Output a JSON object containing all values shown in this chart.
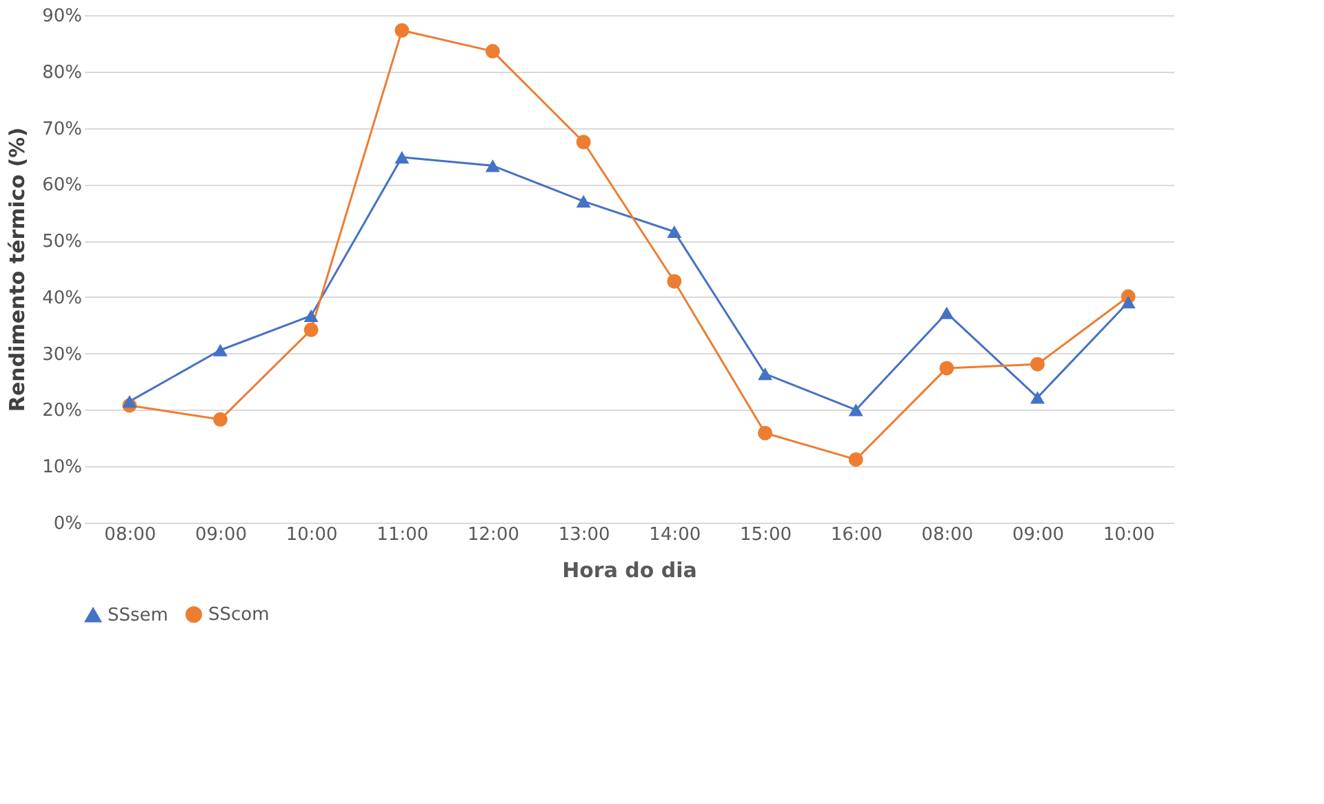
{
  "chart_data": {
    "type": "line",
    "xlabel": "Hora do dia",
    "ylabel": "Rendimento térmico (%)",
    "categories": [
      "08:00",
      "09:00",
      "10:00",
      "11:00",
      "12:00",
      "13:00",
      "14:00",
      "15:00",
      "16:00",
      "08:00",
      "09:00",
      "10:00"
    ],
    "series": [
      {
        "name": "SSsem",
        "color": "#4472c4",
        "marker": "triangle",
        "values": [
          21.5,
          30.6,
          36.7,
          64.8,
          63.3,
          57,
          51.6,
          26.4,
          20,
          37.2,
          22.2,
          39.1
        ]
      },
      {
        "name": "SScom",
        "color": "#ed7d31",
        "marker": "circle",
        "values": [
          20.8,
          18.3,
          34.2,
          87.3,
          83.6,
          67.5,
          42.8,
          15.9,
          11.2,
          27.4,
          28.1,
          40.1
        ]
      }
    ],
    "ylim": [
      0,
      90
    ],
    "yticks": [
      {
        "value": 0,
        "label": "0%"
      },
      {
        "value": 10,
        "label": "10%"
      },
      {
        "value": 20,
        "label": "20%"
      },
      {
        "value": 30,
        "label": "30%"
      },
      {
        "value": 40,
        "label": "40%"
      },
      {
        "value": 50,
        "label": "50%"
      },
      {
        "value": 60,
        "label": "60%"
      },
      {
        "value": 70,
        "label": "70%"
      },
      {
        "value": 80,
        "label": "80%"
      },
      {
        "value": 90,
        "label": "90%"
      }
    ],
    "grid": "y",
    "legend": "bottom",
    "line_style": "solid"
  }
}
